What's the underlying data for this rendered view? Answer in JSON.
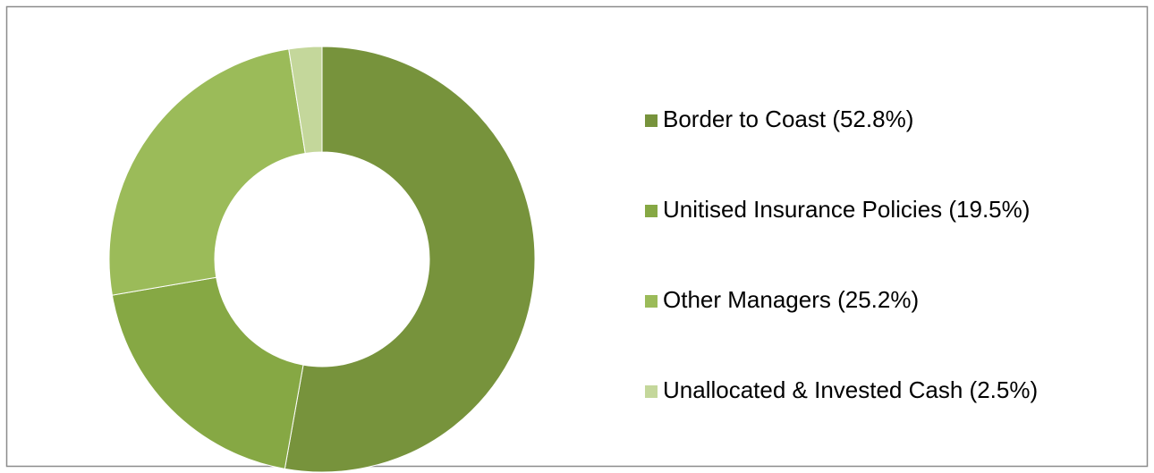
{
  "chart_data": {
    "type": "donut",
    "categories": [
      "Border to Coast (52.8%)",
      "Unitised Insurance Policies (19.5%)",
      "Other Managers (25.2%)",
      "Unallocated & Invested Cash (2.5%)"
    ],
    "values": [
      52.8,
      19.5,
      25.2,
      2.5
    ],
    "colors": [
      "#77933c",
      "#86a844",
      "#9bbb59",
      "#c4d79b"
    ],
    "legend": "right"
  }
}
